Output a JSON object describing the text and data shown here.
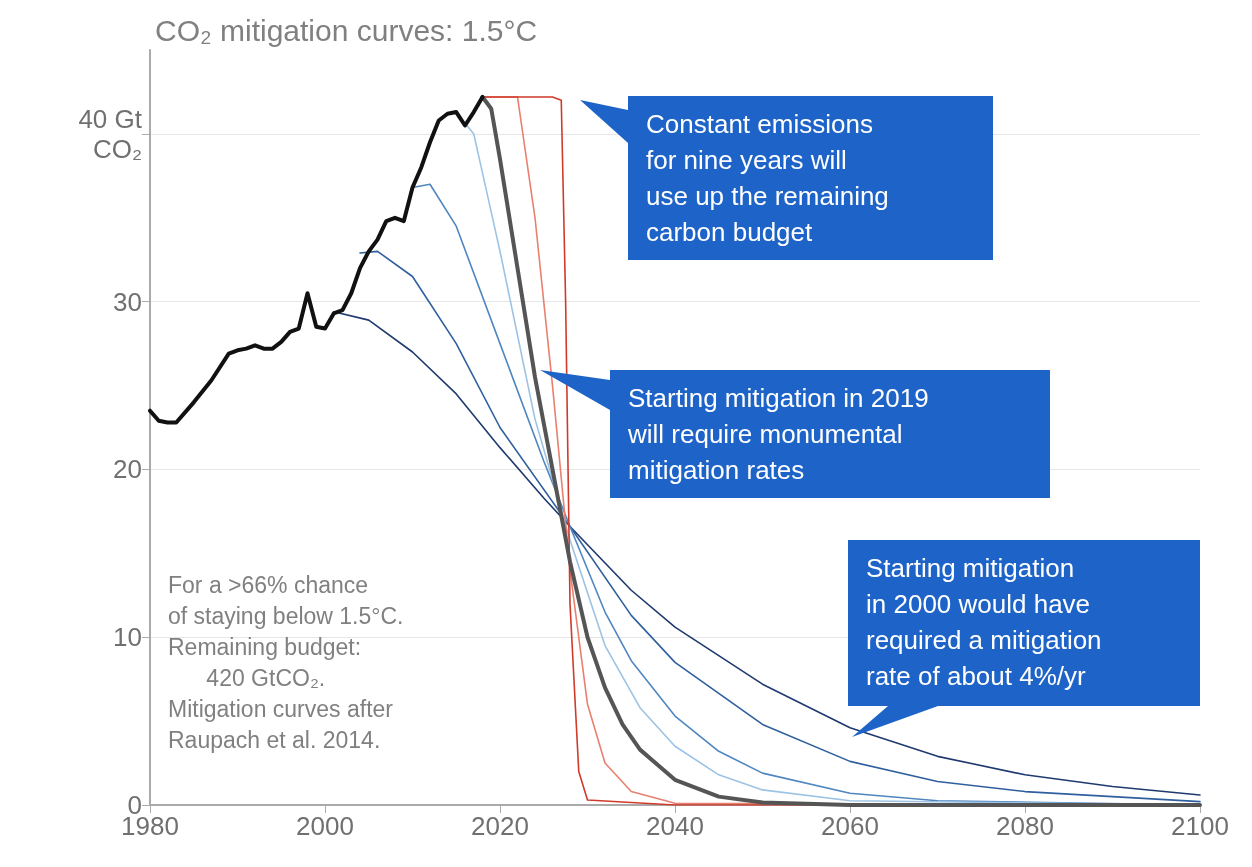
{
  "chart_data": {
    "type": "line",
    "title": "CO₂ mitigation curves: 1.5°C",
    "xlim": [
      1980,
      2100
    ],
    "xticks": [
      1980,
      2000,
      2020,
      2040,
      2060,
      2080,
      2100
    ],
    "ylim": [
      0,
      45
    ],
    "yticks": [
      0,
      10,
      20,
      30,
      {
        "value": 40,
        "label": "40 Gt\nCO₂"
      }
    ],
    "grid": "y",
    "marker": "none",
    "line_style": "solid",
    "series": [
      {
        "color": "#1f3a6e",
        "x": [
          2001,
          2005,
          2010,
          2015,
          2020,
          2025,
          2028,
          2035,
          2040,
          2050,
          2060,
          2070,
          2080,
          2090,
          2100
        ],
        "values": [
          29.4,
          28.9,
          27,
          24.5,
          21.3,
          18.3,
          16.6,
          12.8,
          10.6,
          7.2,
          4.6,
          2.9,
          1.8,
          1.1,
          0.6
        ]
      },
      {
        "color": "#2f5f9e",
        "x": [
          2004,
          2006,
          2010,
          2015,
          2020,
          2028,
          2035,
          2040,
          2050,
          2060,
          2070,
          2080,
          2100
        ],
        "values": [
          32.9,
          33,
          31.5,
          27.5,
          22.5,
          16.6,
          11.3,
          8.5,
          4.8,
          2.6,
          1.4,
          0.8,
          0.2
        ]
      },
      {
        "color": "#4f86c0",
        "x": [
          2010,
          2012,
          2015,
          2020,
          2025,
          2028,
          2032,
          2035,
          2040,
          2045,
          2050,
          2060,
          2070,
          2100
        ],
        "values": [
          36.8,
          37,
          34.5,
          27.5,
          20.5,
          16.6,
          11.5,
          8.6,
          5.3,
          3.2,
          1.9,
          0.7,
          0.25,
          0
        ]
      },
      {
        "color": "#9cc3e4",
        "x": [
          2015,
          2017,
          2020,
          2024,
          2028,
          2032,
          2036,
          2040,
          2045,
          2050,
          2060,
          2100
        ],
        "values": [
          41.3,
          40,
          33,
          23,
          15.8,
          9.5,
          5.8,
          3.5,
          1.8,
          0.9,
          0.25,
          0
        ]
      },
      {
        "color": "#e8806f",
        "x": [
          2018,
          2022,
          2024,
          2026,
          2028,
          2030,
          2032,
          2035,
          2040,
          2100
        ],
        "values": [
          42.2,
          42.2,
          35,
          25,
          14,
          6,
          2.5,
          0.8,
          0.1,
          0
        ]
      },
      {
        "color": "#d03a2a",
        "x": [
          2018,
          2026,
          2027,
          2027.5,
          2028,
          2029,
          2030,
          2040,
          2100
        ],
        "values": [
          42.2,
          42.2,
          42,
          30,
          12,
          2,
          0.3,
          0,
          0
        ]
      },
      {
        "color": "#555555",
        "x": [
          2018,
          2019,
          2020,
          2022,
          2024,
          2026,
          2028,
          2030,
          2032,
          2034,
          2036,
          2040,
          2045,
          2050,
          2060,
          2100
        ],
        "values": [
          42.2,
          41.5,
          38.5,
          32,
          25.5,
          20,
          14.5,
          10,
          7,
          4.8,
          3.3,
          1.5,
          0.5,
          0.15,
          0,
          0
        ]
      },
      {
        "color": "#111111",
        "x": [
          1980,
          1981,
          1982,
          1983,
          1985,
          1987,
          1989,
          1990,
          1991,
          1992,
          1993,
          1994,
          1995,
          1996,
          1997,
          1998,
          1999,
          2000,
          2001,
          2002,
          2003,
          2004,
          2005,
          2006,
          2007,
          2008,
          2009,
          2010,
          2011,
          2012,
          2013,
          2014,
          2015,
          2016,
          2017,
          2018
        ],
        "values": [
          23.5,
          22.9,
          22.8,
          22.8,
          24,
          25.3,
          26.9,
          27.1,
          27.2,
          27.4,
          27.2,
          27.2,
          27.6,
          28.2,
          28.4,
          30.5,
          28.5,
          28.4,
          29.3,
          29.5,
          30.5,
          32,
          33,
          33.7,
          34.8,
          35,
          34.8,
          36.8,
          38,
          39.5,
          40.8,
          41.2,
          41.3,
          40.5,
          41.3,
          42.2
        ]
      }
    ],
    "annotations": [
      "Constant emissions\nfor nine years will\nuse up the remaining\ncarbon budget",
      "Starting mitigation in 2019\nwill require monumental\nmitigation rates",
      "Starting mitigation\nin 2000 would have\nrequired a mitigation\nrate of about 4%/yr",
      "For a >66% chance\nof staying below 1.5°C.\nRemaining budget:\n      420 GtCO₂.\nMitigation curves after\nRaupach et al. 2014."
    ]
  }
}
